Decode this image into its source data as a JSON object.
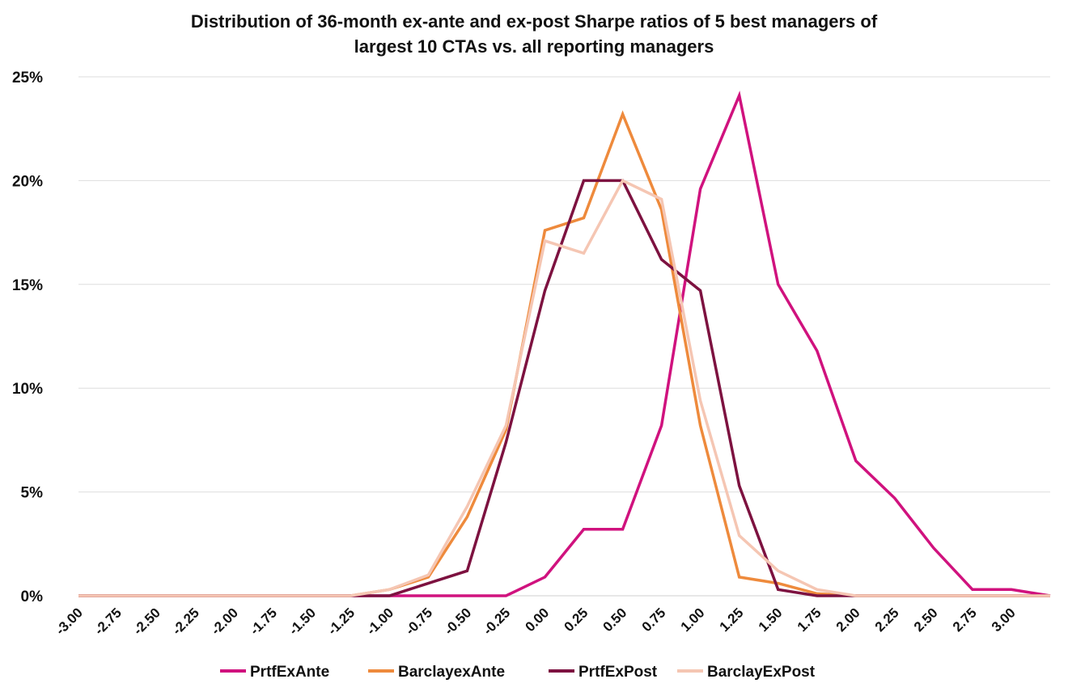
{
  "title_line1": "Distribution of 36-month ex-ante and ex-post Sharpe ratios of 5 best managers of",
  "title_line2": "largest 10 CTAs vs. all reporting managers",
  "chart_data": {
    "type": "line",
    "title": "Distribution of 36-month ex-ante and ex-post Sharpe ratios of 5 best managers of largest 10 CTAs vs. all reporting managers",
    "xlabel": "",
    "ylabel": "",
    "categories": [
      "-3.00",
      "-2.75",
      "-2.50",
      "-2.25",
      "-2.00",
      "-1.75",
      "-1.50",
      "-1.25",
      "-1.00",
      "-0.75",
      "-0.50",
      "-0.25",
      "0.00",
      "0.25",
      "0.50",
      "0.75",
      "1.00",
      "1.25",
      "1.50",
      "1.75",
      "2.00",
      "2.25",
      "2.50",
      "2.75",
      "3.00",
      ""
    ],
    "yticks": [
      "0%",
      "5%",
      "10%",
      "15%",
      "20%",
      "25%"
    ],
    "ylim": [
      0,
      25
    ],
    "grid": true,
    "legend_position": "bottom",
    "series": [
      {
        "name": "PrtfExAnte",
        "color": "#d0127e",
        "values": [
          0,
          0,
          0,
          0,
          0,
          0,
          0,
          0,
          0,
          0,
          0,
          0,
          0.9,
          3.2,
          3.2,
          8.2,
          19.6,
          24.1,
          15.0,
          11.8,
          6.5,
          4.7,
          2.3,
          0.3,
          0.3,
          0
        ]
      },
      {
        "name": "BarclayexAnte",
        "color": "#ee8a3c",
        "values": [
          0,
          0,
          0,
          0,
          0,
          0,
          0,
          0,
          0.3,
          0.9,
          3.8,
          8.0,
          17.6,
          18.2,
          23.2,
          18.6,
          8.2,
          0.9,
          0.6,
          0.1,
          0,
          0,
          0,
          0,
          0,
          0
        ]
      },
      {
        "name": "PrtfExPost",
        "color": "#7d1240",
        "values": [
          0,
          0,
          0,
          0,
          0,
          0,
          0,
          0,
          0,
          0.6,
          1.2,
          7.4,
          14.7,
          20.0,
          20.0,
          16.2,
          14.7,
          5.3,
          0.3,
          0,
          0,
          0,
          0,
          0,
          0,
          0
        ]
      },
      {
        "name": "BarclayExPost",
        "color": "#f5c6b3",
        "values": [
          0,
          0,
          0,
          0,
          0,
          0,
          0,
          0,
          0.3,
          1.0,
          4.3,
          8.2,
          17.1,
          16.5,
          20.0,
          19.1,
          9.4,
          2.9,
          1.2,
          0.3,
          0,
          0,
          0,
          0,
          0,
          0
        ]
      }
    ]
  }
}
